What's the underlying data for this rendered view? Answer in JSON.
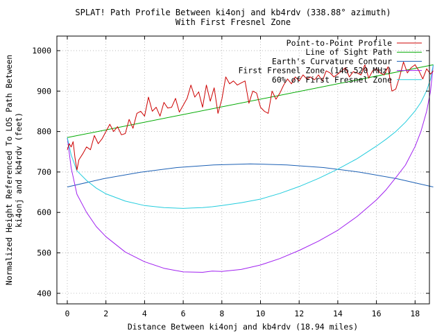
{
  "chart_data": {
    "type": "line",
    "title_line1": "SPLAT! Path Profile Between ki4onj and kb4rdv (338.88° azimuth)",
    "title_line2": "With First Fresnel Zone",
    "xlabel": "Distance Between ki4onj and kb4rdv (18.94 miles)",
    "ylabel_line1": "Normalized Height Referenced To LOS Path Between",
    "ylabel_line2": "ki4onj and kb4rdv (feet)",
    "xlim": [
      -0.5,
      18.94
    ],
    "ylim": [
      370,
      1040
    ],
    "xticks": [
      0,
      2,
      4,
      6,
      8,
      10,
      12,
      14,
      16,
      18
    ],
    "yticks": [
      400,
      500,
      600,
      700,
      800,
      900,
      1000
    ],
    "grid": true,
    "legend_position": "top-right",
    "colors": {
      "profile": "#cc0000",
      "los": "#00aa00",
      "curvature": "#1a5fb4",
      "fresnel": "#a020f0",
      "fresnel60": "#22ccdd"
    },
    "series": [
      {
        "key": "profile",
        "name": "Point-to-Point Profile",
        "x": [
          0.0,
          0.1,
          0.2,
          0.3,
          0.4,
          0.5,
          0.6,
          0.8,
          1.0,
          1.2,
          1.4,
          1.6,
          1.8,
          2.0,
          2.2,
          2.4,
          2.6,
          2.8,
          3.0,
          3.2,
          3.4,
          3.6,
          3.8,
          4.0,
          4.2,
          4.4,
          4.6,
          4.8,
          5.0,
          5.2,
          5.4,
          5.6,
          5.8,
          6.0,
          6.2,
          6.4,
          6.6,
          6.8,
          7.0,
          7.2,
          7.4,
          7.6,
          7.8,
          8.0,
          8.2,
          8.4,
          8.6,
          8.8,
          9.0,
          9.2,
          9.4,
          9.6,
          9.8,
          10.0,
          10.2,
          10.4,
          10.6,
          10.8,
          11.0,
          11.2,
          11.4,
          11.6,
          11.8,
          12.0,
          12.2,
          12.4,
          12.6,
          12.8,
          13.0,
          13.2,
          13.4,
          13.6,
          13.8,
          14.0,
          14.2,
          14.4,
          14.6,
          14.8,
          15.0,
          15.2,
          15.4,
          15.6,
          15.8,
          16.0,
          16.2,
          16.4,
          16.6,
          16.8,
          17.0,
          17.2,
          17.4,
          17.6,
          17.8,
          18.0,
          18.2,
          18.4,
          18.6,
          18.8,
          18.94
        ],
        "y": [
          755,
          770,
          762,
          775,
          735,
          705,
          730,
          745,
          762,
          755,
          790,
          770,
          782,
          800,
          818,
          800,
          812,
          792,
          795,
          830,
          808,
          845,
          850,
          838,
          885,
          850,
          860,
          838,
          872,
          858,
          860,
          882,
          848,
          865,
          882,
          915,
          885,
          898,
          860,
          915,
          875,
          908,
          845,
          880,
          935,
          918,
          925,
          915,
          920,
          925,
          870,
          900,
          895,
          860,
          850,
          845,
          900,
          880,
          895,
          915,
          930,
          918,
          935,
          925,
          940,
          930,
          935,
          928,
          940,
          925,
          950,
          945,
          935,
          942,
          950,
          958,
          935,
          948,
          945,
          940,
          965,
          932,
          950,
          955,
          945,
          940,
          960,
          900,
          905,
          935,
          972,
          945,
          958,
          965,
          950,
          930,
          955,
          942,
          950
        ]
      },
      {
        "key": "los",
        "name": "Line of Sight Path",
        "x": [
          0,
          18.94
        ],
        "y": [
          785,
          965
        ]
      },
      {
        "key": "curvature",
        "name": "Earth's Curvature Contour",
        "x": [
          0,
          1.894,
          3.788,
          5.682,
          7.576,
          9.47,
          11.364,
          13.258,
          15.152,
          17.046,
          18.94
        ],
        "y": [
          663,
          683.5,
          699.5,
          711,
          717.5,
          720,
          717.5,
          711,
          699.5,
          683.5,
          663
        ]
      },
      {
        "key": "fresnel",
        "name": "First Fresnel Zone (146.520 MHz)",
        "x": [
          0,
          0.2,
          0.5,
          1.0,
          1.5,
          2.0,
          3.0,
          4.0,
          5.0,
          6.0,
          7.0,
          7.5,
          8.0,
          9.0,
          10.0,
          11.0,
          12.0,
          13.0,
          14.0,
          15.0,
          16.0,
          16.5,
          17.0,
          17.5,
          18.0,
          18.3,
          18.6,
          18.8,
          18.94
        ],
        "y": [
          785,
          710,
          645,
          600,
          565,
          540,
          502,
          478,
          462,
          453,
          452,
          455,
          454,
          459,
          470,
          486,
          506,
          529,
          556,
          590,
          631,
          656,
          686,
          717,
          763,
          800,
          850,
          900,
          965
        ]
      },
      {
        "key": "fresnel60",
        "name": "60% of First Fresnel Zone",
        "x": [
          0,
          0.2,
          0.5,
          1.0,
          1.5,
          2.0,
          3.0,
          4.0,
          5.0,
          6.0,
          6.5,
          7.0,
          7.5,
          8.0,
          9.0,
          10.0,
          11.0,
          12.0,
          13.0,
          14.0,
          15.0,
          16.0,
          16.5,
          17.0,
          17.5,
          18.0,
          18.3,
          18.6,
          18.8,
          18.94
        ],
        "y": [
          785,
          742,
          703,
          679,
          660,
          646,
          628,
          617,
          612,
          610,
          611,
          612,
          614,
          617,
          624,
          633,
          647,
          664,
          684,
          707,
          733,
          764,
          781,
          800,
          823,
          851,
          872,
          901,
          930,
          965
        ]
      }
    ]
  }
}
